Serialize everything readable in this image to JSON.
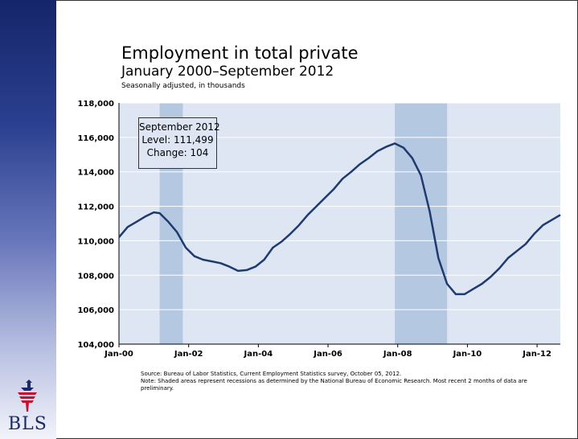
{
  "slide": {
    "title": "Employment in total private",
    "subtitle": "January 2000–September 2012",
    "caption": "Seasonally adjusted, in thousands",
    "infobox": {
      "period": "September 2012",
      "level": "Level: 111,499",
      "change": "Change: 104"
    },
    "source_line": "Source: Bureau of Labor Statistics, Current Employment Statistics survey, October 05, 2012.",
    "note_line": "Note: Shaded areas represent recessions as determined by the National Bureau of Economic Research. Most recent 2 months of data are preliminary.",
    "logo_text": "BLS"
  },
  "colors": {
    "plot_background": "#dde6f2",
    "recession_shade": "#b5c8e2",
    "line": "#1f3a6e",
    "sidebar_top": "#15256a"
  },
  "chart_data": {
    "type": "line",
    "y_ticks": [
      "104,000",
      "106,000",
      "108,000",
      "110,000",
      "112,000",
      "114,000",
      "116,000",
      "118,000"
    ],
    "x_ticks": [
      "Jan-00",
      "Jan-02",
      "Jan-04",
      "Jan-06",
      "Jan-08",
      "Jan-10",
      "Jan-12"
    ],
    "ylim": [
      104000,
      118000
    ],
    "xlim": [
      "2000-01",
      "2012-09"
    ],
    "grid": true,
    "legend": "none",
    "recessions": [
      {
        "start": "2001-03",
        "end": "2001-11"
      },
      {
        "start": "2007-12",
        "end": "2009-06"
      }
    ],
    "series": [
      {
        "x": [
          "2000-01",
          "2000-04",
          "2000-07",
          "2000-10",
          "2001-01",
          "2001-03",
          "2001-06",
          "2001-09",
          "2001-12",
          "2002-03",
          "2002-06",
          "2002-09",
          "2002-12",
          "2003-03",
          "2003-06",
          "2003-09",
          "2003-12",
          "2004-03",
          "2004-06",
          "2004-09",
          "2004-12",
          "2005-03",
          "2005-06",
          "2005-09",
          "2005-12",
          "2006-03",
          "2006-06",
          "2006-09",
          "2006-12",
          "2007-03",
          "2007-06",
          "2007-09",
          "2007-12",
          "2008-03",
          "2008-06",
          "2008-09",
          "2008-12",
          "2009-03",
          "2009-06",
          "2009-09",
          "2009-12",
          "2010-03",
          "2010-06",
          "2010-09",
          "2010-12",
          "2011-03",
          "2011-06",
          "2011-09",
          "2011-12",
          "2012-03",
          "2012-06",
          "2012-09"
        ],
        "y": [
          110200,
          110800,
          111100,
          111400,
          111650,
          111600,
          111100,
          110500,
          109600,
          109100,
          108900,
          108800,
          108700,
          108500,
          108250,
          108300,
          108500,
          108900,
          109600,
          109950,
          110400,
          110900,
          111500,
          112000,
          112500,
          113000,
          113600,
          114000,
          114450,
          114800,
          115200,
          115450,
          115650,
          115400,
          114800,
          113800,
          111700,
          109000,
          107500,
          106900,
          106900,
          107200,
          107500,
          107900,
          108400,
          109000,
          109400,
          109800,
          110400,
          110900,
          111200,
          111499
        ]
      }
    ]
  }
}
